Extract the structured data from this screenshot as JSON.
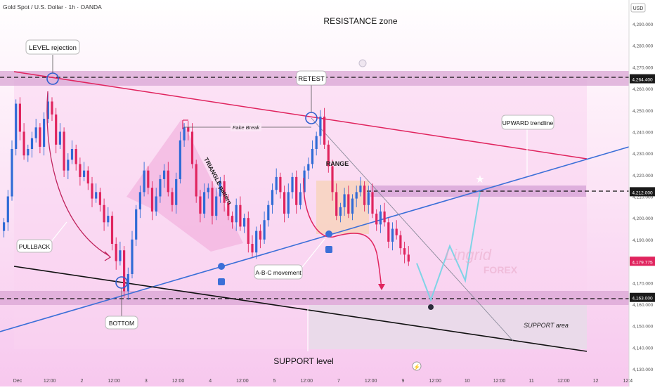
{
  "header": {
    "symbol": "Gold Spot / U.S. Dollar · 1h · OANDA",
    "currency": "USD"
  },
  "colors": {
    "bull": "#2f6bd6",
    "bear": "#e0245e",
    "background": "#fbe3f5",
    "accent_pink": "#e0245e",
    "trend_blue": "#3b6fd8",
    "support_line": "#111111"
  },
  "annotations": {
    "resistance_zone": "RESISTANCE zone",
    "level_rejection": "LEVEL rejection",
    "retest": "RETEST",
    "fake_break": "Fake Break",
    "triangle_pattern": "TRIANGLE pattern",
    "range": "RANGE",
    "upward_trendline": "UPWARD trendline",
    "pullback": "PULLBACK",
    "abc_movement": "A-B-C movement",
    "bottom": "BOTTOM",
    "support_area": "SUPPORT area",
    "support_level": "SUPPORT level",
    "watermark_brand": "Lingrid",
    "watermark_sub": "FOREX"
  },
  "chart_data": {
    "type": "candlestick",
    "title": "Gold Spot / U.S. Dollar · 1h · OANDA",
    "currency": "USD",
    "ylim": [
      4130,
      4300
    ],
    "y_ticks": [
      "4,290.000",
      "4,280.000",
      "4,270.000",
      "4,260.000",
      "4,250.000",
      "4,240.000",
      "4,230.000",
      "4,220.000",
      "4,210.000",
      "4,200.000",
      "4,190.000",
      "4,180.000",
      "4,170.000",
      "4,160.000",
      "4,150.000",
      "4,140.000",
      "4,130.000"
    ],
    "x_ticks": [
      "Dec",
      "12:00",
      "2",
      "12:00",
      "3",
      "12:00",
      "4",
      "12:00",
      "5",
      "12:00",
      "7",
      "12:00",
      "9",
      "12:00",
      "10",
      "12:00",
      "11",
      "12:00",
      "12",
      "12:4"
    ],
    "price_levels": [
      {
        "label": "4,264.400",
        "value": 4264.4,
        "style": "dashed"
      },
      {
        "label": "4,212.000",
        "value": 4212.0,
        "style": "dashed"
      },
      {
        "label": "4,163.000",
        "value": 4163.0,
        "style": "dashed"
      }
    ],
    "last_price": {
      "label": "4,179.775",
      "value": 4179.775
    },
    "zones": [
      {
        "name": "resistance",
        "from": 4261,
        "to": 4268
      },
      {
        "name": "range-top",
        "from": 4208,
        "to": 4215
      },
      {
        "name": "support",
        "from": 4160,
        "to": 4166
      }
    ],
    "trendlines": [
      {
        "name": "descending-resistance",
        "from": [
          0,
          4268
        ],
        "to": [
          1,
          4227
        ]
      },
      {
        "name": "upward-trendline",
        "from": [
          0,
          4151
        ],
        "to": [
          1,
          4233
        ]
      },
      {
        "name": "support-line",
        "from": [
          0,
          4181
        ],
        "to": [
          1,
          4137
        ]
      }
    ],
    "candles_close": [
      4198,
      4210,
      4232,
      4253,
      4240,
      4229,
      4232,
      4237,
      4242,
      4233,
      4246,
      4254,
      4248,
      4234,
      4240,
      4222,
      4227,
      4232,
      4225,
      4219,
      4222,
      4216,
      4209,
      4212,
      4206,
      4198,
      4201,
      4188,
      4180,
      4185,
      4166,
      4174,
      4190,
      4204,
      4212,
      4222,
      4214,
      4203,
      4210,
      4218,
      4222,
      4212,
      4206,
      4218,
      4236,
      4242,
      4240,
      4225,
      4210,
      4202,
      4212,
      4214,
      4201,
      4210,
      4217,
      4207,
      4201,
      4198,
      4206,
      4196,
      4200,
      4188,
      4184,
      4194,
      4190,
      4199,
      4206,
      4213,
      4219,
      4212,
      4202,
      4212,
      4219,
      4206,
      4212,
      4222,
      4225,
      4232,
      4238,
      4247,
      4234,
      4224,
      4212,
      4201,
      4205,
      4211,
      4202,
      4209,
      4212,
      4215,
      4206,
      4212,
      4202,
      4197,
      4203,
      4198,
      4189,
      4195,
      4192,
      4186,
      4183,
      4179.775
    ],
    "projection": [
      {
        "x": "12:00",
        "y": 4179
      },
      {
        "x": "10",
        "y": 4162
      },
      {
        "x": "12:00",
        "y": 4187
      },
      {
        "x": "11",
        "y": 4171
      },
      {
        "x": "12:00",
        "y": 4212
      }
    ]
  }
}
